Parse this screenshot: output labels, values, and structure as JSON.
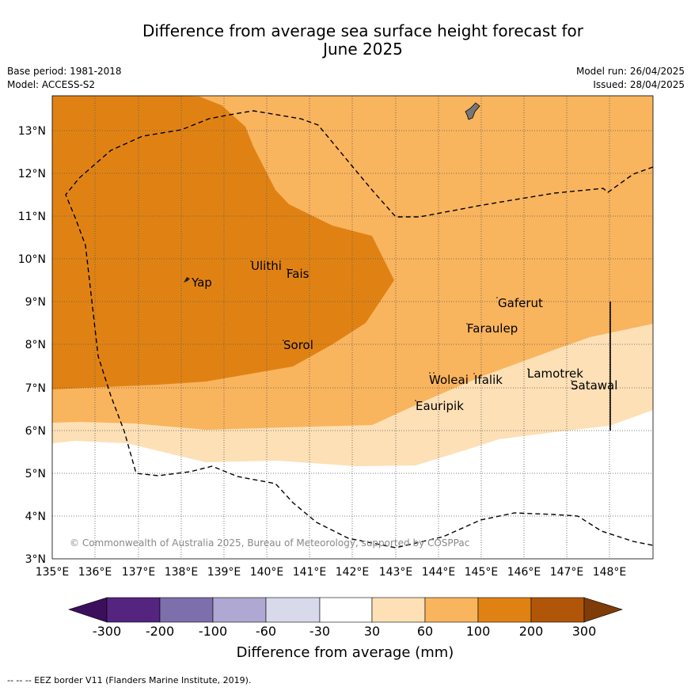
{
  "title_line1": "Difference from average sea surface height forecast for",
  "title_line2": "June 2025",
  "base_period": "Base period: 1981-2018",
  "model": "Model: ACCESS-S2",
  "model_run": "Model run: 26/04/2025",
  "issued": "Issued: 28/04/2025",
  "copyright": "© Commonwealth of Australia 2025, Bureau of Meteorology, supported by COSPPac",
  "footnote": "-- -- -- EEZ border V11 (Flanders Marine Institute, 2019).",
  "colorbar": {
    "label": "Difference from average (mm)",
    "ticks": [
      "-300",
      "-200",
      "-100",
      "-60",
      "-30",
      "30",
      "60",
      "100",
      "200",
      "300"
    ],
    "colors": [
      "#3b0f5c",
      "#54247f",
      "#7d6fac",
      "#afa8d2",
      "#d9d9ec",
      "#ffffff",
      "#fde0b6",
      "#f9b45e",
      "#e08213",
      "#b15609",
      "#7f3b08"
    ]
  },
  "map": {
    "lon_ticks": [
      "135°E",
      "136°E",
      "137°E",
      "138°E",
      "139°E",
      "140°E",
      "141°E",
      "142°E",
      "143°E",
      "144°E",
      "145°E",
      "146°E",
      "147°E",
      "148°E"
    ],
    "lat_ticks": [
      "3°N",
      "4°N",
      "5°N",
      "6°N",
      "7°N",
      "8°N",
      "9°N",
      "10°N",
      "11°N",
      "12°N",
      "13°N"
    ],
    "lon_range": [
      135,
      149
    ],
    "lat_range": [
      3,
      13.8
    ],
    "places": [
      {
        "name": "Yap",
        "lon": 138.25,
        "lat": 9.35
      },
      {
        "name": "Ulithi",
        "lon": 139.6,
        "lat": 9.75
      },
      {
        "name": "Fais",
        "lon": 140.45,
        "lat": 9.55
      },
      {
        "name": "Sorol",
        "lon": 140.35,
        "lat": 7.95
      },
      {
        "name": "Gaferut",
        "lon": 145.35,
        "lat": 8.85
      },
      {
        "name": "Faraulep",
        "lon": 144.55,
        "lat": 8.3
      },
      {
        "name": "Woleai",
        "lon": 143.75,
        "lat": 7.05
      },
      {
        "name": "Ifalik",
        "lon": 144.75,
        "lat": 7.05
      },
      {
        "name": "Lamotrek",
        "lon": 146.0,
        "lat": 7.2
      },
      {
        "name": "Satawal",
        "lon": 147.05,
        "lat": 6.95
      },
      {
        "name": "Eauripik",
        "lon": 143.4,
        "lat": 6.5
      }
    ]
  }
}
